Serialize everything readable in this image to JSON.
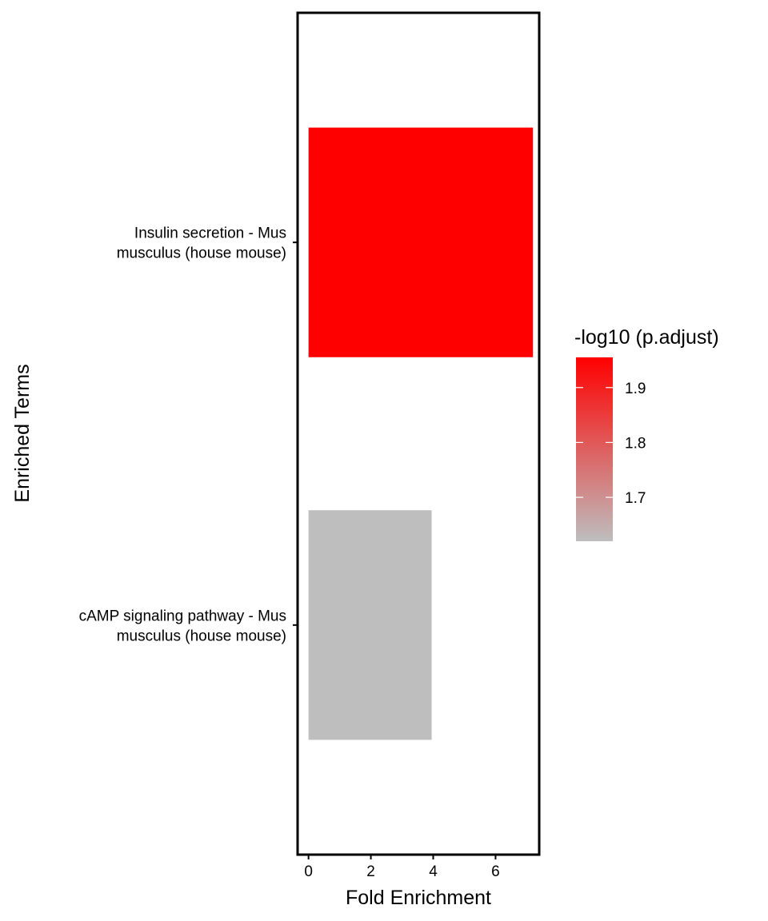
{
  "chart_data": {
    "type": "bar",
    "orientation": "horizontal",
    "title": "",
    "xlabel": "Fold Enrichment",
    "ylabel": "Enriched Terms",
    "xlim": [
      -0.35,
      7.4
    ],
    "xticks": [
      0,
      2,
      4,
      6
    ],
    "grid": false,
    "categories": [
      [
        "Insulin secretion - Mus",
        "musculus (house mouse)"
      ],
      [
        "cAMP signaling pathway - Mus",
        "musculus (house mouse)"
      ]
    ],
    "values": [
      7.2,
      3.95
    ],
    "color_values": [
      1.955,
      1.62
    ],
    "legend": {
      "title": "-log10 (p.adjust)",
      "placement": "right",
      "range": [
        1.62,
        1.955
      ],
      "ticks": [
        1.7,
        1.8,
        1.9
      ],
      "low_color": "#bebebe",
      "high_color": "#ff0000"
    }
  }
}
